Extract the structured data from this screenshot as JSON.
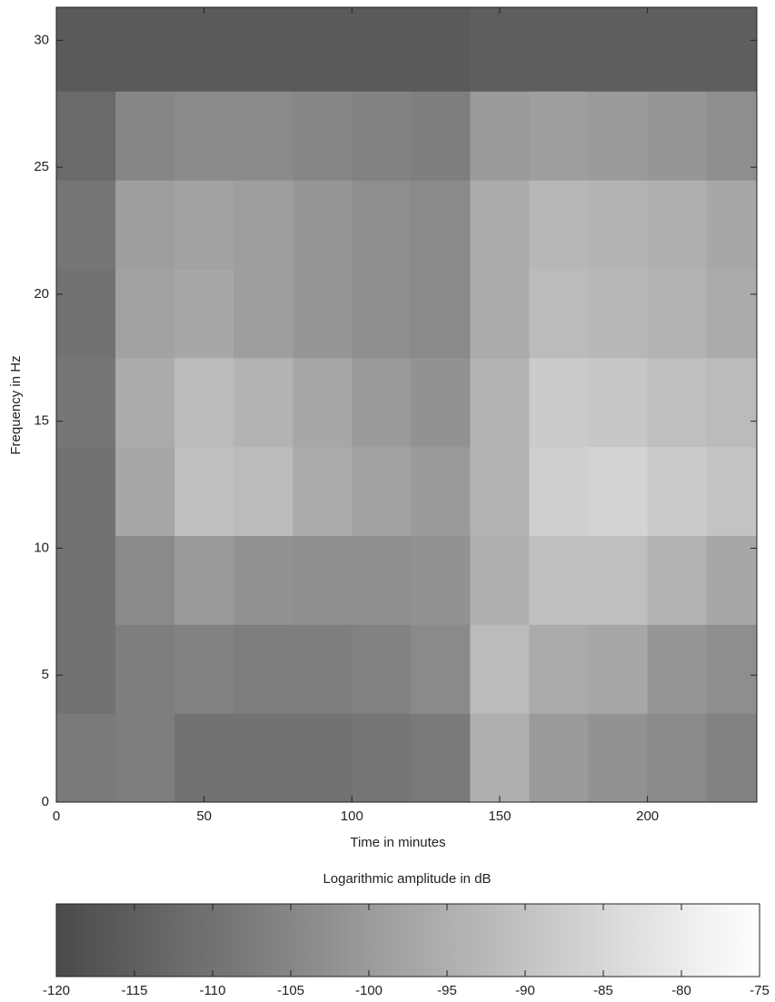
{
  "chart_data": {
    "type": "heatmap",
    "x_label": "Time in minutes",
    "y_label": "Frequency in Hz",
    "xlim": [
      0,
      237
    ],
    "ylim": [
      0,
      31.3
    ],
    "xticks": [
      0,
      50,
      100,
      150,
      200
    ],
    "yticks": [
      0,
      5,
      10,
      15,
      20,
      25,
      30
    ],
    "x_edges": [
      0,
      20,
      40,
      60,
      80,
      100,
      120,
      140,
      160,
      180,
      200,
      220,
      237
    ],
    "y_edges": [
      0,
      3.5,
      7,
      10.5,
      14,
      17.5,
      21,
      24.5,
      28,
      31.3
    ],
    "z": [
      [
        -108,
        -107,
        -110,
        -110,
        -110,
        -109,
        -108,
        -95,
        -100,
        -102,
        -104,
        -106
      ],
      [
        -110,
        -107,
        -106,
        -107,
        -107,
        -106,
        -104,
        -92,
        -96,
        -97,
        -101,
        -103
      ],
      [
        -110,
        -104,
        -100,
        -102,
        -103,
        -103,
        -102,
        -95,
        -91,
        -91,
        -94,
        -97
      ],
      [
        -110,
        -97,
        -91,
        -92,
        -96,
        -98,
        -100,
        -94,
        -87,
        -86,
        -88,
        -90
      ],
      [
        -109,
        -96,
        -92,
        -94,
        -97,
        -100,
        -102,
        -94,
        -88,
        -89,
        -91,
        -92
      ],
      [
        -110,
        -98,
        -97,
        -99,
        -101,
        -103,
        -104,
        -96,
        -92,
        -93,
        -94,
        -96
      ],
      [
        -109,
        -99,
        -98,
        -99,
        -101,
        -103,
        -104,
        -96,
        -93,
        -94,
        -95,
        -97
      ],
      [
        -112,
        -105,
        -104,
        -104,
        -105,
        -106,
        -107,
        -100,
        -99,
        -100,
        -101,
        -103
      ],
      [
        -116,
        -116,
        -116,
        -116,
        -116,
        -116,
        -116,
        -115,
        -115,
        -115,
        -115,
        -115
      ]
    ],
    "colormap": [
      "#4a4a4a",
      "#ffffff"
    ],
    "colorbar": {
      "title": "Logarithmic amplitude in dB",
      "lim": [
        -120,
        -75
      ],
      "ticks": [
        -120,
        -115,
        -110,
        -105,
        -100,
        -95,
        -90,
        -85,
        -80,
        -75
      ]
    }
  }
}
